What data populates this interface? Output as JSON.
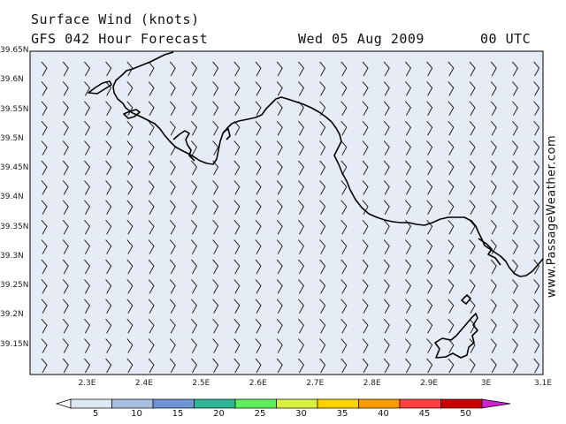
{
  "header": {
    "title": "Surface Wind (knots)",
    "forecast": "GFS 042 Hour Forecast",
    "date": "Wed 05 Aug 2009",
    "time": "00 UTC"
  },
  "watermark": "www.PassageWeather.com",
  "map": {
    "lat_min": 39.1,
    "lat_max": 39.65,
    "lon_min": 2.2,
    "lon_max": 3.1,
    "y_ticks": [
      "39.65N",
      "39.6N",
      "39.55N",
      "39.5N",
      "39.45N",
      "39.4N",
      "39.35N",
      "39.3N",
      "39.25N",
      "39.2N",
      "39.15N"
    ],
    "x_ticks": [
      "2.3E",
      "2.4E",
      "2.5E",
      "2.6E",
      "2.7E",
      "2.8E",
      "2.9E",
      "3E",
      "3.1E"
    ],
    "wind_speed_knots": 5,
    "background_color": "#e6ecf5"
  },
  "legend": {
    "labels": [
      "5",
      "10",
      "15",
      "20",
      "25",
      "30",
      "35",
      "40",
      "45",
      "50"
    ],
    "colors": [
      "#ffffff",
      "#dfe7f3",
      "#a8bfe0",
      "#6f93d3",
      "#2fb598",
      "#5cf05c",
      "#d8f040",
      "#ffd300",
      "#ff9a00",
      "#ff4040",
      "#c80000",
      "#d020d0"
    ]
  }
}
